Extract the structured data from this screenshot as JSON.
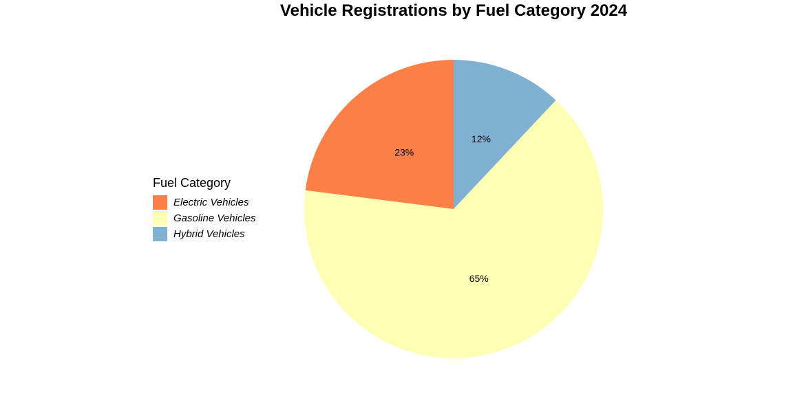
{
  "chart_data": {
    "type": "pie",
    "title": "Vehicle Registrations by Fuel Category 2024",
    "legend_title": "Fuel Category",
    "legend_position": "left",
    "start": "12 o'clock",
    "direction": "clockwise",
    "slices": [
      {
        "name": "Hybrid Vehicles",
        "value": 12,
        "label": "12%",
        "color": "#80B1D3"
      },
      {
        "name": "Gasoline Vehicles",
        "value": 65,
        "label": "65%",
        "color": "#FFFFB3"
      },
      {
        "name": "Electric Vehicles",
        "value": 23,
        "label": "23%",
        "color": "#FB8048"
      }
    ],
    "legend_order": [
      "Electric Vehicles",
      "Gasoline Vehicles",
      "Hybrid Vehicles"
    ]
  }
}
